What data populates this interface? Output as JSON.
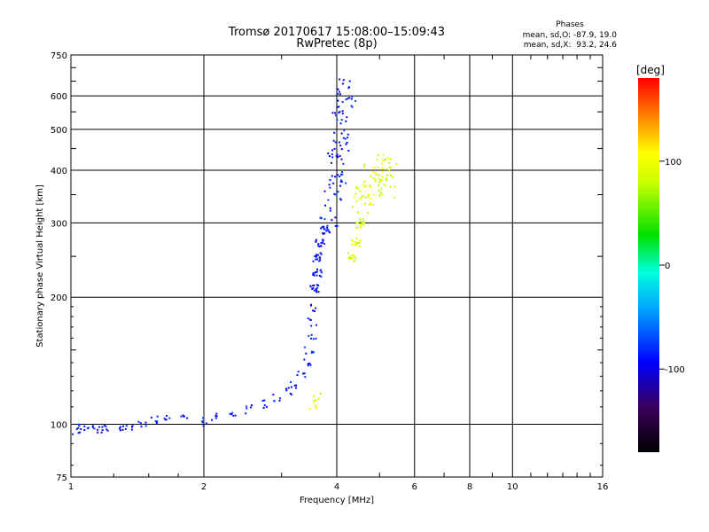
{
  "chart_data": {
    "type": "scatter",
    "title": "Tromsø 20170617 15:08:00–15:09:43",
    "subtitle": "RwPretec (8p)",
    "xlabel": "Frequency [MHz]",
    "ylabel": "Stationary phase Virtual Height [km]",
    "xscale": "log",
    "yscale": "log",
    "xlim": [
      1,
      16
    ],
    "ylim": [
      75,
      750
    ],
    "x_ticks": [
      1,
      2,
      4,
      6,
      8,
      10,
      16
    ],
    "x_tick_labels": [
      "1",
      "2",
      "4",
      "6",
      "8",
      "10",
      "16"
    ],
    "y_ticks": [
      75,
      100,
      200,
      300,
      400,
      500,
      600,
      750
    ],
    "y_tick_labels": [
      "75",
      "100",
      "200",
      "300",
      "400",
      "500",
      "600",
      "750"
    ],
    "grid": true,
    "phase_legend": {
      "title": "Phases",
      "line_o": "mean, sd,O: -87.9, 19.0",
      "line_x": "mean, sd,X:  93.2, 24.6"
    },
    "colorbar": {
      "label": "[deg]",
      "range": [
        -180,
        180
      ],
      "ticks": [
        100,
        0,
        -100
      ],
      "tick_labels": [
        "100",
        "0",
        "-100"
      ]
    },
    "series": [
      {
        "name": "O-mode trace (blue, phase ≈ -90°)",
        "phase": -90,
        "points": [
          [
            1.02,
            97
          ],
          [
            1.05,
            99
          ],
          [
            1.1,
            98
          ],
          [
            1.15,
            97
          ],
          [
            1.2,
            98
          ],
          [
            1.28,
            98
          ],
          [
            1.35,
            100
          ],
          [
            1.45,
            101
          ],
          [
            1.55,
            103
          ],
          [
            1.65,
            104
          ],
          [
            1.8,
            103
          ],
          [
            2.0,
            102
          ],
          [
            2.1,
            104
          ],
          [
            2.3,
            106
          ],
          [
            2.5,
            109
          ],
          [
            2.7,
            112
          ],
          [
            2.9,
            116
          ],
          [
            3.1,
            120
          ],
          [
            3.2,
            125
          ],
          [
            3.3,
            132
          ],
          [
            3.4,
            140
          ],
          [
            3.45,
            150
          ],
          [
            3.5,
            160
          ],
          [
            3.5,
            175
          ],
          [
            3.55,
            190
          ],
          [
            3.55,
            210
          ],
          [
            3.6,
            230
          ],
          [
            3.6,
            250
          ],
          [
            3.65,
            270
          ],
          [
            3.75,
            290
          ],
          [
            3.8,
            320
          ],
          [
            3.9,
            360
          ],
          [
            4.0,
            400
          ],
          [
            4.05,
            450
          ],
          [
            4.1,
            500
          ],
          [
            4.15,
            560
          ],
          [
            4.2,
            620
          ]
        ]
      },
      {
        "name": "X-mode trace (yellow/orange, phase ≈ +90°)",
        "phase": 90,
        "points": [
          [
            3.6,
            116
          ],
          [
            3.5,
            112
          ],
          [
            4.3,
            250
          ],
          [
            4.4,
            270
          ],
          [
            4.5,
            300
          ],
          [
            4.55,
            330
          ],
          [
            4.6,
            360
          ],
          [
            4.8,
            380
          ],
          [
            5.0,
            390
          ],
          [
            5.1,
            400
          ],
          [
            5.2,
            380
          ]
        ]
      }
    ]
  }
}
